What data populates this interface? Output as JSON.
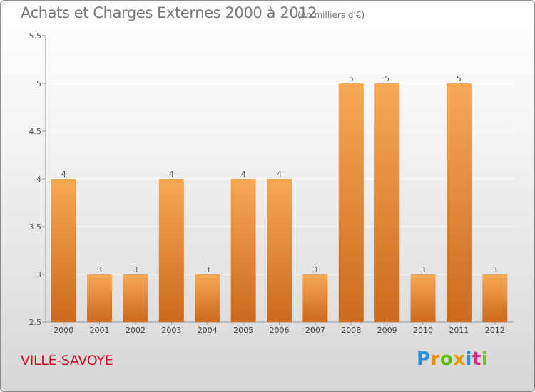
{
  "title": "Achats et Charges Externes 2000 à 2012",
  "unit_label": "(en milliers d'€)",
  "commune": "VILLE-SAVOYE",
  "logo_text": "Proxiti",
  "colors": {
    "bar_top": "#f7a955",
    "bar_bottom": "#cc6a1c",
    "title": "#7a7a7a",
    "commune": "#c8102e",
    "grid": "#ffffff",
    "axis": "#9a9a9a"
  },
  "chart_data": {
    "type": "bar",
    "categories": [
      "2000",
      "2001",
      "2002",
      "2003",
      "2004",
      "2005",
      "2006",
      "2007",
      "2008",
      "2009",
      "2010",
      "2011",
      "2012"
    ],
    "values": [
      4,
      3,
      3,
      4,
      3,
      4,
      4,
      3,
      5,
      5,
      3,
      5,
      3
    ],
    "data_labels": [
      "4",
      "3",
      "3",
      "4",
      "3",
      "4",
      "4",
      "3",
      "5",
      "5",
      "3",
      "5",
      "3"
    ],
    "ylim": [
      2.5,
      5.5
    ],
    "yticks": [
      2.5,
      3,
      3.5,
      4,
      4.5,
      5,
      5.5
    ],
    "ytick_labels": [
      "2.5",
      "3",
      "3.5",
      "4",
      "4.5",
      "5",
      "5.5"
    ],
    "grid": true,
    "title": "Achats et Charges Externes 2000 à 2012",
    "xlabel": "",
    "ylabel": ""
  }
}
